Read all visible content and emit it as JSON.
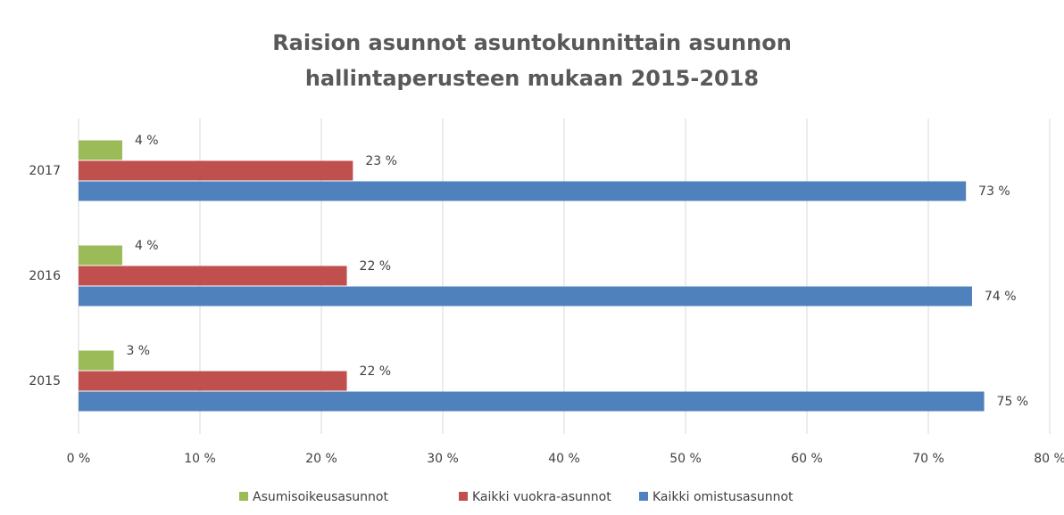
{
  "chart_data": {
    "type": "barh",
    "title": "Raision asunnot asuntokunnittain asunnon hallintaperusteen mukaan 2015-2018",
    "categories": [
      "2017",
      "2016",
      "2015"
    ],
    "series": [
      {
        "name": "Asumisoikeusasunnot",
        "color": "#9bbb59",
        "values": [
          3.6,
          3.6,
          2.9
        ],
        "value_labels": [
          "4 %",
          "4 %",
          "3 %"
        ]
      },
      {
        "name": "Kaikki vuokra-asunnot",
        "color": "#c0504d",
        "values": [
          22.6,
          22.1,
          22.1
        ],
        "value_labels": [
          "23 %",
          "22 %",
          "22 %"
        ]
      },
      {
        "name": "Kaikki omistusasunnot",
        "color": "#4f81bd",
        "values": [
          73.1,
          73.6,
          74.6
        ],
        "value_labels": [
          "73 %",
          "74 %",
          "75 %"
        ]
      }
    ],
    "xlim": [
      0,
      80
    ],
    "xticks": [
      {
        "value": 0,
        "label": "0 %"
      },
      {
        "value": 10,
        "label": "10 %"
      },
      {
        "value": 20,
        "label": "20 %"
      },
      {
        "value": 30,
        "label": "30 %"
      },
      {
        "value": 40,
        "label": "40 %"
      },
      {
        "value": 50,
        "label": "50 %"
      },
      {
        "value": 60,
        "label": "60 %"
      },
      {
        "value": 70,
        "label": "70 %"
      },
      {
        "value": 80,
        "label": "80 %"
      }
    ],
    "grid": true,
    "legend": "bottom"
  }
}
